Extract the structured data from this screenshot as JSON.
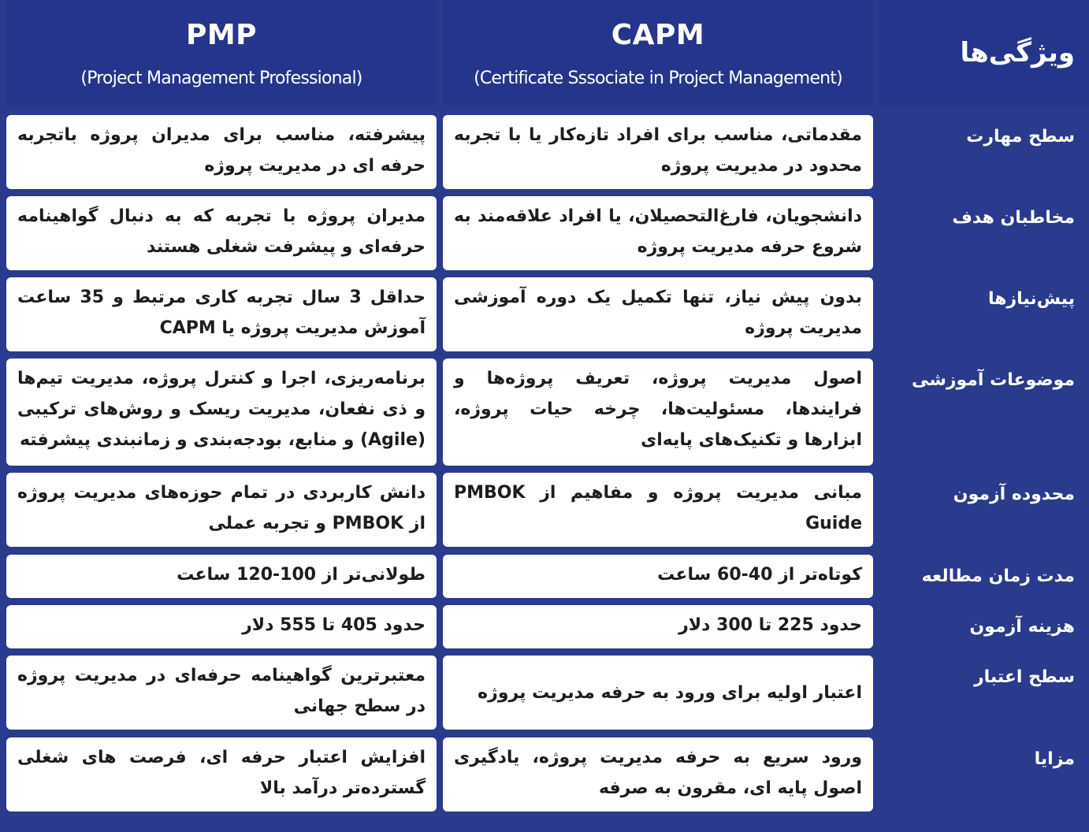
{
  "header": {
    "features": "ویژگی‌ها",
    "capm_title": "CAPM",
    "capm_sub": "(Certificate Sssociate in Project Management)",
    "pmp_title": "PMP",
    "pmp_sub": "(Project Management Professional)"
  },
  "rows": [
    {
      "label": "سطح مهارت",
      "capm": "مقدماتی، مناسب برای افراد تازه‌کار یا با تجربه محدود در مدیریت پروژه",
      "pmp": "پیشرفته، مناسب برای مدیران پروژه باتجربه حرفه ای در مدیریت پروژه"
    },
    {
      "label": "مخاطبان هدف",
      "capm": "دانشجویان، فارغ‌التحصیلان، یا افراد علاقه‌مند به شروع حرفه مدیریت پروژه",
      "pmp": "مدیران پروژه با تجربه که به دنبال گواهینامه حرفه‌ای و پیشرفت شغلی هستند"
    },
    {
      "label": "پیش‌نیازها",
      "capm": "بدون پیش نیاز، تنها تکمیل یک دوره آموزشی مدیریت پروژه",
      "pmp": "حداقل 3 سال تجربه کاری مرتبط و 35 ساعت آموزش مدیریت پروژه یا CAPM"
    },
    {
      "label": "موضوعات آموزشی",
      "capm": "اصول مدیریت پروژه، تعریف پروژه‌ها و فرایندها، مسئولیت‌ها، چرخه حیات پروژه، ابزارها و تکنیک‌های پایه‌ای",
      "pmp": "برنامه‌ریزی، اجرا و کنترل پروژه، مدیریت تیم‌ها و ذی نفعان، مدیریت ریسک و روش‌های ترکیبی (Agile) و منابع، بودجه‌بندی و زمانبندی پیشرفته"
    },
    {
      "label": "محدوده آزمون",
      "capm": "مبانی مدیریت پروژه و مفاهیم از PMBOK Guide",
      "pmp": "دانش کاربردی در تمام حوزه‌های مدیریت پروژه از PMBOK و تجربه عملی"
    },
    {
      "label": "مدت زمان مطالعه",
      "capm": "کوتاه‌تر از 40-60 ساعت",
      "pmp": "طولانی‌تر از 100-120 ساعت"
    },
    {
      "label": "هزینه آزمون",
      "capm": "حدود 225 تا 300 دلار",
      "pmp": "حدود 405 تا 555 دلار"
    },
    {
      "label": "سطح اعتبار",
      "capm": "اعتبار اولیه برای ورود به حرفه مدیریت پروژه",
      "pmp": "معتبرترین گواهینامه حرفه‌ای در مدیریت پروژه در سطح جهانی"
    },
    {
      "label": "مزایا",
      "capm": "ورود سریع به حرفه مدیریت پروژه، یادگیری اصول پایه ای، مقرون به صرفه",
      "pmp": "افزایش اعتبار حرفه ای، فرصت های شغلی گسترده‌تر درآمد بالا"
    }
  ]
}
